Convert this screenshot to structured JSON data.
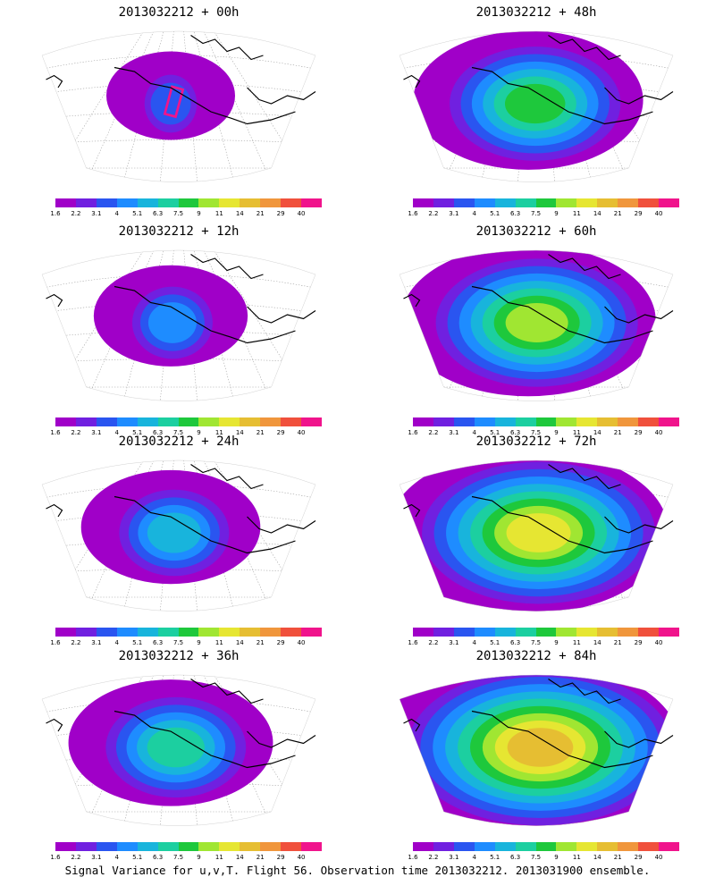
{
  "panels": [
    {
      "title": "2013032212 + 00h",
      "lead": 0
    },
    {
      "title": "2013032212 + 48h",
      "lead": 48
    },
    {
      "title": "2013032212 + 12h",
      "lead": 12
    },
    {
      "title": "2013032212 + 60h",
      "lead": 60
    },
    {
      "title": "2013032212 + 24h",
      "lead": 24
    },
    {
      "title": "2013032212 + 72h",
      "lead": 72
    },
    {
      "title": "2013032212 + 36h",
      "lead": 36
    },
    {
      "title": "2013032212 + 84h",
      "lead": 84
    }
  ],
  "colorbar": {
    "labels": [
      "1.6",
      "2.2",
      "3.1",
      "4",
      "5.1",
      "6.3",
      "7.5",
      "9",
      "11",
      "14",
      "21",
      "29",
      "40"
    ],
    "colors": [
      "#a000c8",
      "#7020e0",
      "#2a55f0",
      "#1e8cff",
      "#18b4dc",
      "#1ccfa0",
      "#1ec83c",
      "#a0e632",
      "#e6e632",
      "#e6be32",
      "#f0963c",
      "#f0503c",
      "#f0148c"
    ]
  },
  "footer": "Signal Variance for u,v,T. Flight 56. Observation time 2013032212. 2013031900 ensemble."
}
